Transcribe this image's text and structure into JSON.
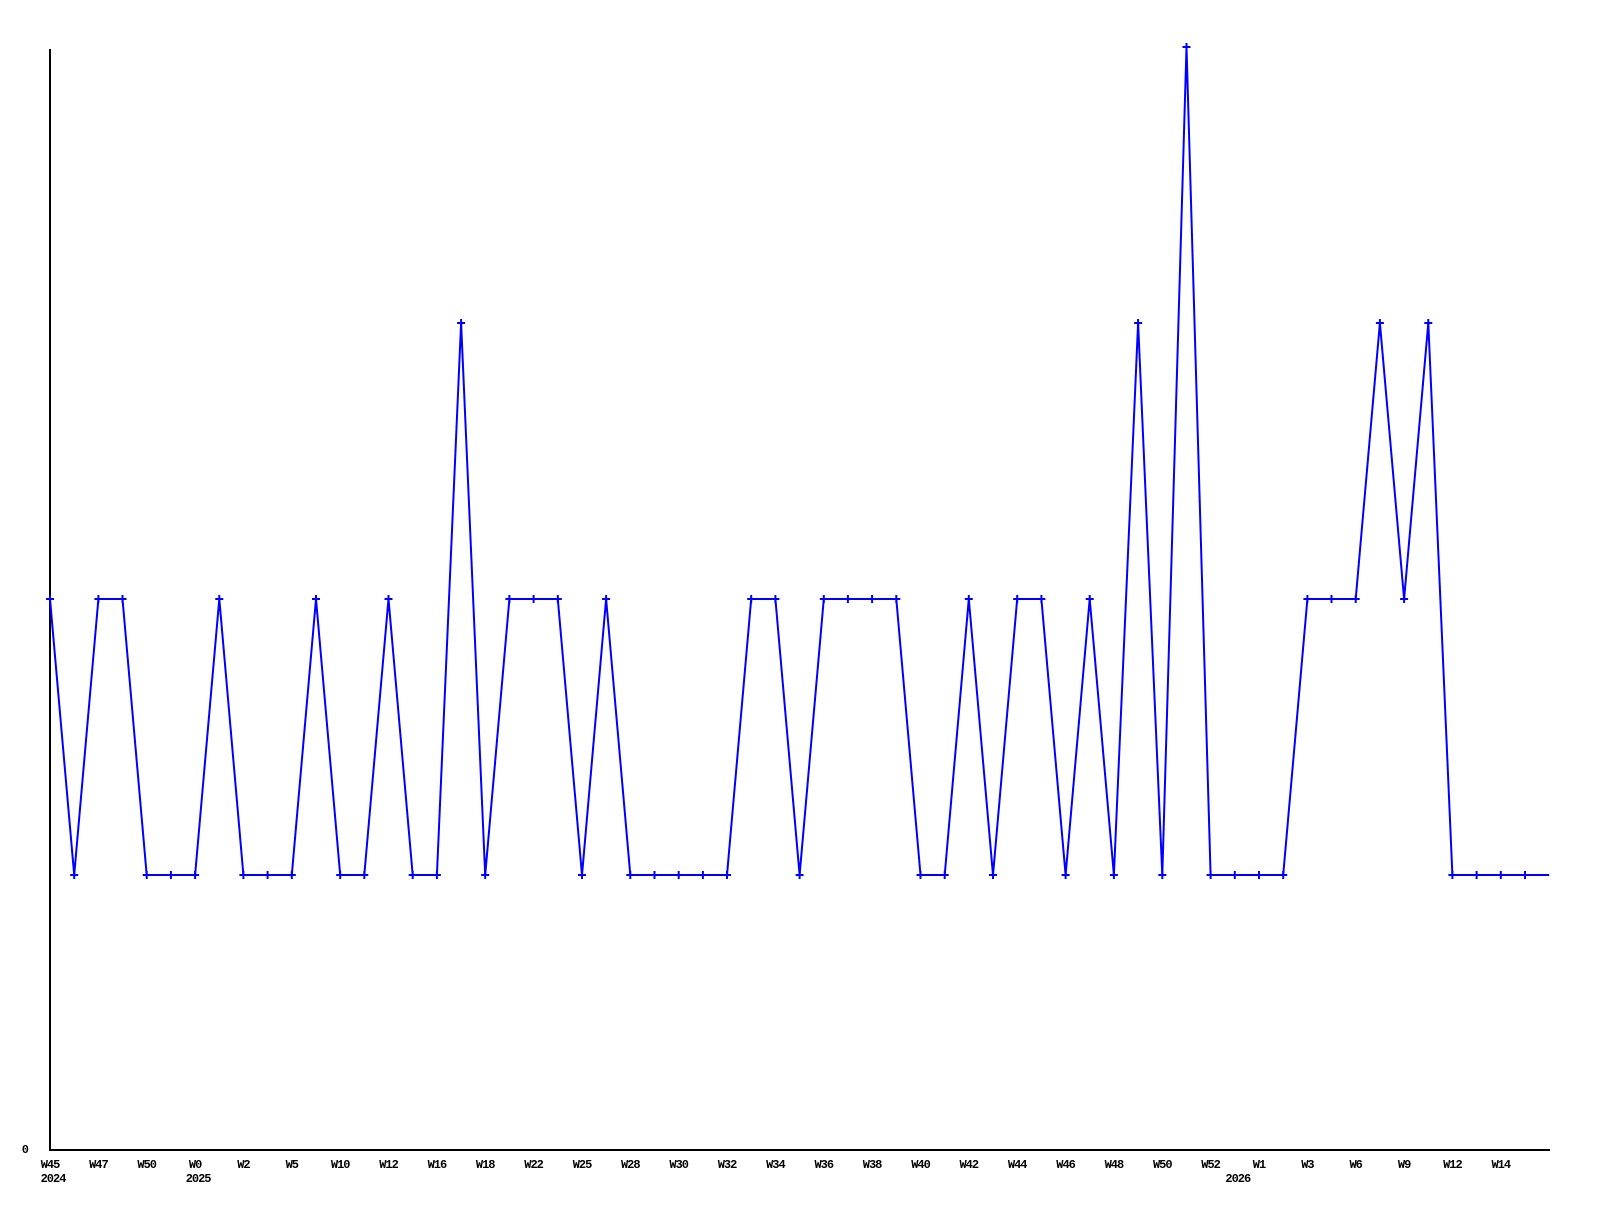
{
  "page": {
    "background": "#ffffff"
  },
  "chart_data": {
    "type": "line",
    "title": "",
    "legend": null,
    "grid": false,
    "background": "#ffffff",
    "line_color": "#0000ff",
    "marker": "plus",
    "marker_color": "#0000ff",
    "axis_color": "#000000",
    "text_color": "#000000",
    "y_axis": {
      "tick_labels": [
        "0"
      ],
      "min": 0,
      "max_visible_value": 4,
      "implied_unit_levels": [
        1,
        2,
        3,
        4
      ]
    },
    "x_axis": {
      "tick_labels": [
        {
          "label": "W45",
          "i": 0
        },
        {
          "label": "W47",
          "i": 2
        },
        {
          "label": "W50",
          "i": 4
        },
        {
          "label": "W0",
          "i": 6
        },
        {
          "label": "W2",
          "i": 8
        },
        {
          "label": "W5",
          "i": 10
        },
        {
          "label": "W10",
          "i": 12
        },
        {
          "label": "W12",
          "i": 14
        },
        {
          "label": "W16",
          "i": 16
        },
        {
          "label": "W18",
          "i": 18
        },
        {
          "label": "W22",
          "i": 20
        },
        {
          "label": "W25",
          "i": 22
        },
        {
          "label": "W28",
          "i": 24
        },
        {
          "label": "W30",
          "i": 26
        },
        {
          "label": "W32",
          "i": 28
        },
        {
          "label": "W34",
          "i": 30
        },
        {
          "label": "W36",
          "i": 32
        },
        {
          "label": "W38",
          "i": 34
        },
        {
          "label": "W40",
          "i": 36
        },
        {
          "label": "W42",
          "i": 38
        },
        {
          "label": "W44",
          "i": 40
        },
        {
          "label": "W46",
          "i": 42
        },
        {
          "label": "W48",
          "i": 44
        },
        {
          "label": "W50",
          "i": 46
        },
        {
          "label": "W52",
          "i": 48
        },
        {
          "label": "W1",
          "i": 50
        },
        {
          "label": "W3",
          "i": 52
        },
        {
          "label": "W6",
          "i": 54
        },
        {
          "label": "W9",
          "i": 56
        },
        {
          "label": "W12",
          "i": 58
        },
        {
          "label": "W14",
          "i": 60
        }
      ],
      "year_labels": [
        {
          "text": "2024",
          "i": 0
        },
        {
          "text": "2025",
          "i": 6
        },
        {
          "text": "2026",
          "i": 49
        }
      ]
    },
    "points": [
      2,
      1,
      2,
      2,
      1,
      1,
      1,
      2,
      1,
      1,
      1,
      2,
      1,
      1,
      2,
      1,
      1,
      3,
      1,
      2,
      2,
      2,
      1,
      2,
      1,
      1,
      1,
      1,
      1,
      2,
      2,
      1,
      2,
      2,
      2,
      2,
      1,
      1,
      2,
      1,
      2,
      2,
      1,
      2,
      1,
      3,
      1,
      4,
      1,
      1,
      1,
      1,
      2,
      2,
      2,
      3,
      2,
      3,
      1,
      1,
      1,
      1,
      1
    ],
    "last_point_marker": false
  }
}
